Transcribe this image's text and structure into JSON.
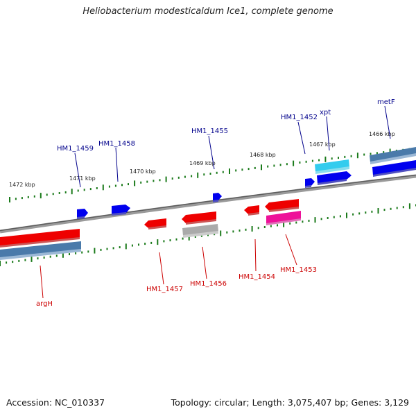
{
  "title": "Heliobacterium modesticaldum Ice1, complete genome",
  "footer": {
    "accession": "Accession: NC_010337",
    "summary": "Topology: circular; Length: 3,075,407 bp; Genes: 3,129"
  },
  "colors": {
    "plus_strand_label": "#00008b",
    "minus_strand_label": "#cc0000",
    "backbone": "#808080",
    "tick": "#1a7a1a",
    "gene_blue": "#0000ee",
    "gene_red": "#ee0000",
    "gene_light_blue": "#33ccee",
    "gene_magenta": "#ee1199",
    "gene_grey": "#aaaaaa",
    "rna_steelblue": "#4a7aaa"
  },
  "scale_labels": [
    "1472 kbp",
    "1471 kbp",
    "1470 kbp",
    "1469 kbp",
    "1468 kbp",
    "1467 kbp",
    "1466 kbp"
  ],
  "plus_genes": [
    "HM1_1459",
    "HM1_1458",
    "HM1_1455",
    "HM1_1452",
    "xpt",
    "metF"
  ],
  "minus_genes": [
    "argH",
    "HM1_1457",
    "HM1_1456",
    "HM1_1454",
    "HM1_1453"
  ]
}
